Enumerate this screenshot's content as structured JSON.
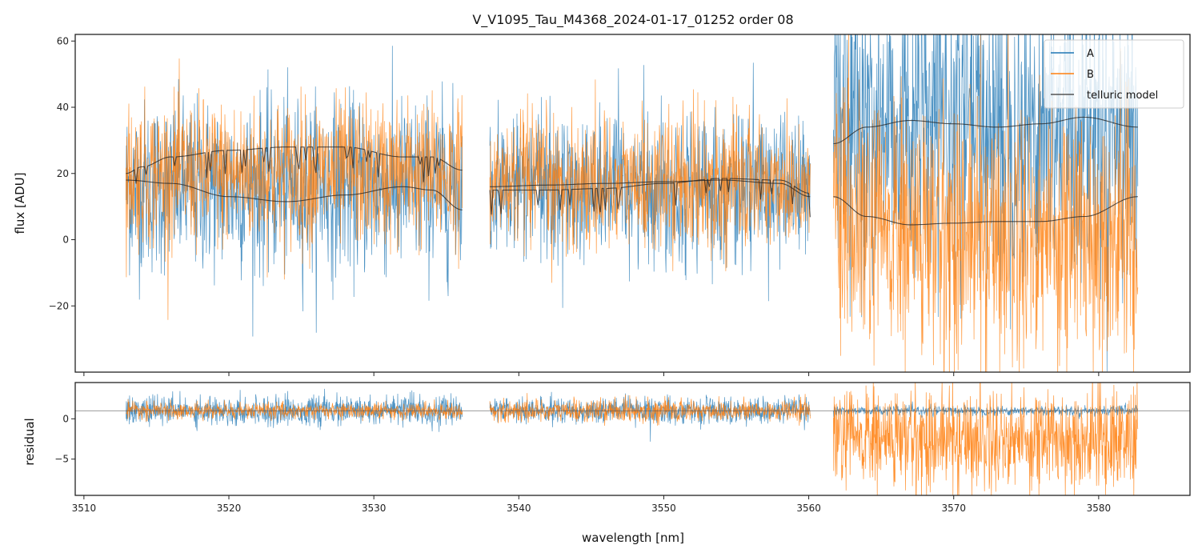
{
  "chart_data": [
    {
      "panel": "flux",
      "type": "line",
      "title": "V_V1095_Tau_M4368_2024-01-17_01252  order 08",
      "xlabel": "",
      "ylabel": "flux [ADU]",
      "xlim": [
        3509.4,
        3586.3
      ],
      "ylim": [
        -40,
        62
      ],
      "yticks": [
        -20,
        0,
        20,
        40,
        60
      ],
      "ytick_labels": [
        "−20",
        "0",
        "20",
        "40",
        "60"
      ],
      "xticks": [
        3510,
        3520,
        3530,
        3540,
        3550,
        3560,
        3570,
        3580
      ],
      "grid": false,
      "legend": {
        "placement": "top-right",
        "entries": [
          {
            "label": "A",
            "color": "#1f77b4"
          },
          {
            "label": "B",
            "color": "#ff7f0e"
          },
          {
            "label": "telluric model",
            "color": "#333333"
          }
        ]
      },
      "segments": [
        {
          "x_range": [
            3512.9,
            3536.1
          ],
          "A": {
            "center": 16,
            "noise_sd": 13
          },
          "B": {
            "center": 20,
            "noise_sd": 11
          },
          "telluric_model_A": {
            "x": [
              3512.9,
              3516,
              3520,
              3524,
              3528,
              3532,
              3534,
              3536.1
            ],
            "y": [
              18,
              17,
              13,
              11.5,
              13.5,
              16,
              15,
              9
            ]
          },
          "telluric_model_B": {
            "x": [
              3512.9,
              3514,
              3516,
              3520,
              3524,
              3528,
              3532,
              3534,
              3536.1
            ],
            "y": [
              20,
              22,
              25,
              27,
              28,
              28,
              25,
              25,
              21
            ]
          }
        },
        {
          "x_range": [
            3538.0,
            3560.1
          ],
          "A": {
            "center": 16,
            "noise_sd": 11
          },
          "B": {
            "center": 17,
            "noise_sd": 10
          },
          "telluric_model_A": {
            "x": [
              3538.0,
              3542,
              3546,
              3550,
              3554,
              3558,
              3560.1
            ],
            "y": [
              16,
              16.5,
              17,
              17.5,
              18,
              17,
              13
            ]
          },
          "telluric_model_B": {
            "x": [
              3538.0,
              3542,
              3546,
              3550,
              3554,
              3558,
              3560.1
            ],
            "y": [
              15,
              15,
              15.5,
              17,
              18.5,
              18,
              14
            ]
          }
        },
        {
          "x_range": [
            3561.7,
            3582.7
          ],
          "A": {
            "center": 35,
            "noise_sd": 22
          },
          "B": {
            "center": 2,
            "noise_sd": 20
          },
          "telluric_model_A": {
            "x": [
              3561.7,
              3564,
              3567,
              3570,
              3573,
              3576,
              3579,
              3582.7
            ],
            "y": [
              29,
              34,
              36,
              35,
              34,
              35,
              37,
              34
            ]
          },
          "telluric_model_B": {
            "x": [
              3561.7,
              3564,
              3567,
              3570,
              3573,
              3576,
              3579,
              3582.7
            ],
            "y": [
              13,
              7,
              4.5,
              5,
              5.5,
              5.5,
              7,
              13
            ]
          }
        }
      ]
    },
    {
      "panel": "residual",
      "type": "line",
      "xlabel": "wavelength [nm]",
      "ylabel": "residual",
      "xlim": [
        3509.4,
        3586.3
      ],
      "ylim": [
        -9.5,
        4.5
      ],
      "yticks": [
        -5,
        0
      ],
      "ytick_labels": [
        "−5",
        "0"
      ],
      "xticks": [
        3510,
        3520,
        3530,
        3540,
        3550,
        3560,
        3570,
        3580
      ],
      "xtick_labels": [
        "3510",
        "3520",
        "3530",
        "3540",
        "3550",
        "3560",
        "3570",
        "3580"
      ],
      "reference_line": 1,
      "grid": false,
      "segments": [
        {
          "x_range": [
            3512.9,
            3536.1
          ],
          "A": {
            "center": 1,
            "noise_sd": 0.9
          },
          "B": {
            "center": 1,
            "noise_sd": 0.5
          }
        },
        {
          "x_range": [
            3538.0,
            3560.1
          ],
          "A": {
            "center": 1,
            "noise_sd": 0.8
          },
          "B": {
            "center": 1,
            "noise_sd": 0.7
          }
        },
        {
          "x_range": [
            3561.7,
            3582.7
          ],
          "A": {
            "center": 1,
            "noise_sd": 0.3
          },
          "B": {
            "center": -2.5,
            "noise_sd": 3.2
          }
        }
      ]
    }
  ]
}
